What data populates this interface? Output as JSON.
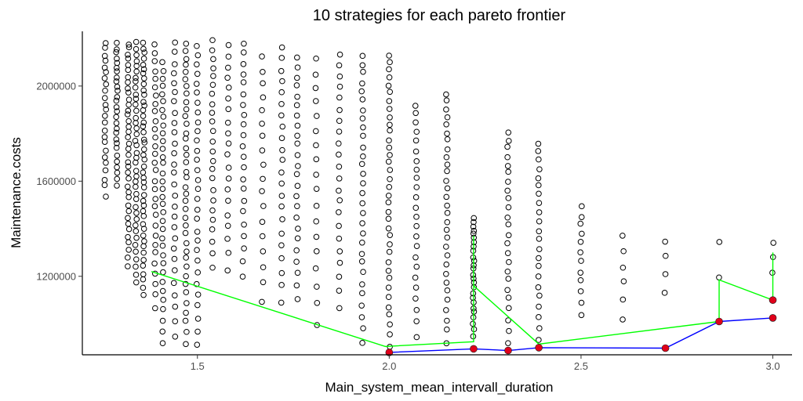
{
  "chart_data": {
    "type": "scatter",
    "title": "10  strategies for each pareto frontier",
    "xlabel": "Main_system_mean_intervall_duration",
    "ylabel": "Maintenance.costs",
    "xlim": [
      1.2,
      3.05
    ],
    "ylim": [
      870000,
      2230000
    ],
    "xticks": [
      1.5,
      2.0,
      2.5,
      3.0
    ],
    "xtick_labels": [
      "1.5",
      "2.0",
      "2.5",
      "3.0"
    ],
    "yticks": [
      1200000,
      1600000,
      2000000
    ],
    "ytick_labels": [
      "1200000",
      "1600000",
      "2000000"
    ],
    "grid": false,
    "columns": [
      {
        "x": 1.26,
        "n": 24,
        "ymin": 1540000,
        "ymax": 2180000
      },
      {
        "x": 1.29,
        "n": 28,
        "ymin": 1580000,
        "ymax": 2180000
      },
      {
        "x": 1.32,
        "n": 38,
        "ymin": 1240000,
        "ymax": 2180000
      },
      {
        "x": 1.34,
        "n": 40,
        "ymin": 1170000,
        "ymax": 2180000
      },
      {
        "x": 1.36,
        "n": 45,
        "ymin": 1120000,
        "ymax": 2180000
      },
      {
        "x": 1.39,
        "n": 30,
        "ymin": 1070000,
        "ymax": 2170000
      },
      {
        "x": 1.41,
        "n": 34,
        "ymin": 920000,
        "ymax": 2100000
      },
      {
        "x": 1.44,
        "n": 28,
        "ymin": 950000,
        "ymax": 2180000
      },
      {
        "x": 1.47,
        "n": 38,
        "ymin": 920000,
        "ymax": 2180000
      },
      {
        "x": 1.5,
        "n": 30,
        "ymin": 910000,
        "ymax": 2170000
      },
      {
        "x": 1.54,
        "n": 24,
        "ymin": 1240000,
        "ymax": 2190000
      },
      {
        "x": 1.58,
        "n": 20,
        "ymin": 1230000,
        "ymax": 2170000
      },
      {
        "x": 1.62,
        "n": 22,
        "ymin": 1200000,
        "ymax": 2180000
      },
      {
        "x": 1.67,
        "n": 18,
        "ymin": 1090000,
        "ymax": 2120000
      },
      {
        "x": 1.72,
        "n": 22,
        "ymin": 1090000,
        "ymax": 2160000
      },
      {
        "x": 1.76,
        "n": 24,
        "ymin": 1100000,
        "ymax": 2120000
      },
      {
        "x": 1.81,
        "n": 18,
        "ymin": 1000000,
        "ymax": 2110000
      },
      {
        "x": 1.87,
        "n": 22,
        "ymin": 1070000,
        "ymax": 2130000
      },
      {
        "x": 1.93,
        "n": 30,
        "ymin": 920000,
        "ymax": 2130000
      },
      {
        "x": 2.0,
        "n": 36,
        "ymin": 900000,
        "ymax": 2130000
      },
      {
        "x": 2.07,
        "n": 24,
        "ymin": 950000,
        "ymax": 1920000
      },
      {
        "x": 2.15,
        "n": 30,
        "ymin": 920000,
        "ymax": 1970000
      },
      {
        "x": 2.22,
        "n": 26,
        "ymin": 950000,
        "ymax": 1450000
      },
      {
        "x": 2.31,
        "n": 24,
        "ymin": 920000,
        "ymax": 1810000
      },
      {
        "x": 2.39,
        "n": 22,
        "ymin": 930000,
        "ymax": 1760000
      },
      {
        "x": 2.5,
        "n": 12,
        "ymin": 1040000,
        "ymax": 1490000
      },
      {
        "x": 2.61,
        "n": 6,
        "ymin": 1020000,
        "ymax": 1370000
      },
      {
        "x": 2.72,
        "n": 4,
        "ymin": 1130000,
        "ymax": 1350000
      },
      {
        "x": 2.86,
        "n": 2,
        "ymin": 1190000,
        "ymax": 1350000
      },
      {
        "x": 3.0,
        "n": 3,
        "ymin": 1210000,
        "ymax": 1340000
      }
    ],
    "series": [
      {
        "color": "#00ff00",
        "type": "line",
        "points": [
          [
            1.38,
            1220000
          ],
          [
            1.99,
            905000
          ],
          [
            2.22,
            925000
          ],
          [
            2.22,
            1370000
          ],
          [
            2.22,
            1160000
          ],
          [
            2.39,
            915000
          ],
          [
            2.86,
            1010000
          ],
          [
            2.86,
            1185000
          ],
          [
            3.0,
            1100000
          ],
          [
            3.0,
            1300000
          ]
        ]
      },
      {
        "color": "#0000ff",
        "type": "line",
        "points": [
          [
            2.0,
            880000
          ],
          [
            2.22,
            895000
          ],
          [
            2.31,
            888000
          ],
          [
            2.39,
            900000
          ],
          [
            2.72,
            898000
          ],
          [
            2.86,
            1010000
          ],
          [
            3.0,
            1025000
          ]
        ]
      },
      {
        "color": "#e0001a",
        "type": "scatter",
        "points": [
          [
            2.0,
            880000
          ],
          [
            2.22,
            895000
          ],
          [
            2.31,
            888000
          ],
          [
            2.39,
            900000
          ],
          [
            2.72,
            898000
          ],
          [
            2.86,
            1010000
          ],
          [
            3.0,
            1025000
          ],
          [
            3.0,
            1100000
          ]
        ]
      }
    ]
  }
}
